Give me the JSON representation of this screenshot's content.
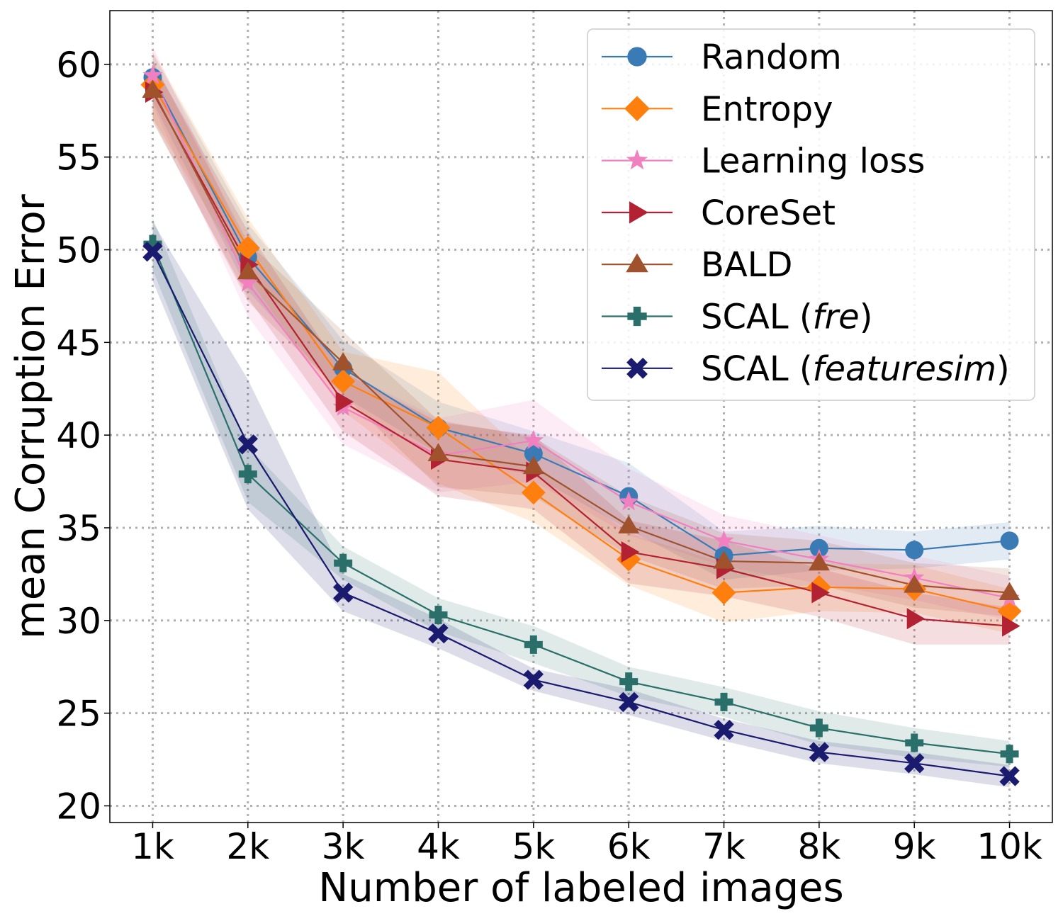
{
  "chart_data": {
    "type": "line",
    "title": "",
    "xlabel": "Number of labeled images",
    "ylabel": "mean Corruption Error",
    "categories": [
      "1k",
      "2k",
      "3k",
      "4k",
      "5k",
      "6k",
      "7k",
      "8k",
      "9k",
      "10k"
    ],
    "x": [
      1,
      2,
      3,
      4,
      5,
      6,
      7,
      8,
      9,
      10
    ],
    "xlim": [
      0.55,
      10.45
    ],
    "ylim": [
      19.1,
      62.9
    ],
    "yticks": [
      20,
      25,
      30,
      35,
      40,
      45,
      50,
      55,
      60
    ],
    "grid": true,
    "legend_location": "top-right",
    "series": [
      {
        "name": "Random",
        "label_prefix": "Random",
        "label_italic": "",
        "label_suffix": "",
        "color": "#3a7ab5",
        "marker": "circle",
        "values": [
          59.3,
          49.6,
          43.6,
          40.4,
          39.0,
          36.7,
          33.5,
          33.9,
          33.8,
          34.3
        ],
        "band": [
          1.3,
          1.8,
          1.5,
          1.4,
          1.2,
          1.8,
          1.3,
          1.2,
          1.0,
          1.0
        ]
      },
      {
        "name": "Entropy",
        "label_prefix": "Entropy",
        "label_italic": "",
        "label_suffix": "",
        "color": "#ff7f0e",
        "marker": "diamond",
        "values": [
          58.9,
          50.1,
          42.9,
          40.4,
          36.9,
          33.3,
          31.5,
          31.8,
          31.7,
          30.5
        ],
        "band": [
          1.8,
          1.6,
          1.6,
          3.0,
          1.6,
          1.4,
          1.6,
          1.3,
          1.3,
          1.2
        ]
      },
      {
        "name": "Learning loss",
        "label_prefix": "Learning loss",
        "label_italic": "",
        "label_suffix": "",
        "color": "#f080c0",
        "marker": "star",
        "values": [
          59.4,
          48.2,
          41.5,
          38.9,
          39.7,
          36.4,
          34.3,
          33.3,
          32.3,
          31.2
        ],
        "band": [
          1.6,
          1.8,
          2.0,
          2.0,
          2.2,
          1.8,
          1.4,
          1.3,
          1.2,
          1.2
        ]
      },
      {
        "name": "CoreSet",
        "label_prefix": "CoreSet",
        "label_italic": "",
        "label_suffix": "",
        "color": "#b22232",
        "marker": "triangle-right",
        "values": [
          58.5,
          49.2,
          41.8,
          38.7,
          38.0,
          33.7,
          32.8,
          31.5,
          30.1,
          29.7
        ],
        "band": [
          1.6,
          1.8,
          1.6,
          2.0,
          2.0,
          1.7,
          1.5,
          1.3,
          1.4,
          1.0
        ]
      },
      {
        "name": "BALD",
        "label_prefix": "BALD",
        "label_italic": "",
        "label_suffix": "",
        "color": "#a0522d",
        "marker": "triangle-up",
        "values": [
          58.6,
          48.8,
          43.9,
          39.0,
          38.3,
          35.1,
          33.2,
          33.1,
          31.9,
          31.5
        ],
        "band": [
          1.6,
          1.6,
          1.7,
          1.8,
          1.6,
          1.6,
          1.5,
          1.2,
          1.2,
          1.3
        ]
      },
      {
        "name": "SCAL (fre)",
        "label_prefix": "SCAL (",
        "label_italic": "fre",
        "label_suffix": ")",
        "color": "#2a6f6a",
        "marker": "plus",
        "values": [
          50.3,
          37.9,
          33.1,
          30.3,
          28.7,
          26.7,
          25.6,
          24.2,
          23.4,
          22.8
        ],
        "band": [
          1.4,
          1.5,
          0.9,
          0.9,
          1.0,
          0.8,
          0.8,
          0.9,
          0.8,
          0.7
        ]
      },
      {
        "name": "SCAL (featuresim)",
        "label_prefix": "SCAL (",
        "label_italic": "featuresim",
        "label_suffix": ")",
        "color": "#1a1a6e",
        "marker": "x",
        "values": [
          49.9,
          39.5,
          31.5,
          29.3,
          26.8,
          25.6,
          24.1,
          22.9,
          22.3,
          21.6
        ],
        "band": [
          1.6,
          3.5,
          1.0,
          0.8,
          0.6,
          0.7,
          0.6,
          0.6,
          0.6,
          0.6
        ]
      }
    ]
  }
}
